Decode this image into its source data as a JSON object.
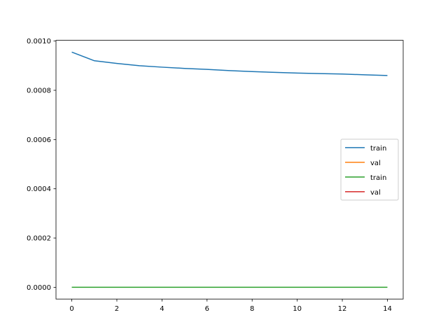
{
  "chart_data": {
    "type": "line",
    "x": [
      0,
      1,
      2,
      3,
      4,
      5,
      6,
      7,
      8,
      9,
      10,
      11,
      12,
      13,
      14
    ],
    "series": [
      {
        "name": "train",
        "color": "#1f77b4",
        "values": [
          0.000955,
          0.00092,
          0.000909,
          0.0009,
          0.000894,
          0.000889,
          0.000885,
          0.00088,
          0.000876,
          0.000873,
          0.00087,
          0.000868,
          0.000866,
          0.000863,
          0.00086
        ]
      },
      {
        "name": "val",
        "color": "#ff7f0e",
        "values": [
          null,
          null,
          null,
          null,
          null,
          null,
          null,
          null,
          null,
          null,
          null,
          null,
          null,
          null,
          null
        ]
      },
      {
        "name": "train",
        "color": "#2ca02c",
        "values": [
          0,
          0,
          0,
          0,
          0,
          0,
          0,
          0,
          0,
          0,
          0,
          0,
          0,
          0,
          0
        ]
      },
      {
        "name": "val",
        "color": "#d62728",
        "values": [
          null,
          null,
          null,
          null,
          null,
          null,
          null,
          null,
          null,
          null,
          null,
          null,
          null,
          null,
          null
        ]
      }
    ],
    "xlim": [
      -0.7,
      14.7
    ],
    "xticks": [
      0,
      2,
      4,
      6,
      8,
      10,
      12,
      14
    ],
    "ylim": [
      -4.78e-05,
      0.001003
    ],
    "yticks": [
      {
        "value": 0,
        "label": "0.0000"
      },
      {
        "value": 0.0002,
        "label": "0.0002"
      },
      {
        "value": 0.0004,
        "label": "0.0004"
      },
      {
        "value": 0.0006,
        "label": "0.0006"
      },
      {
        "value": 0.0008,
        "label": "0.0008"
      },
      {
        "value": 0.001,
        "label": "0.0010"
      }
    ],
    "legend": "center right",
    "grid": false
  }
}
